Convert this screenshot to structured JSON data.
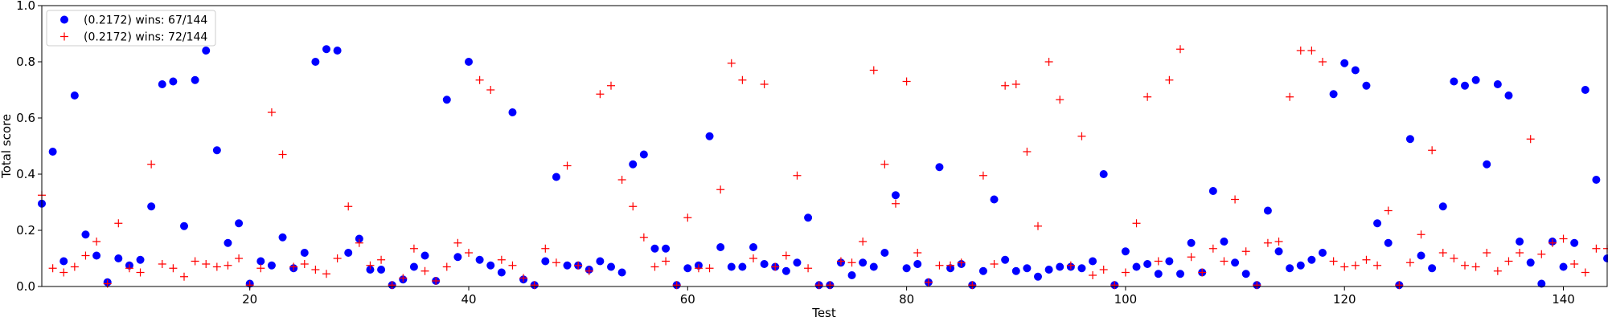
{
  "chart_data": {
    "type": "scatter",
    "xlabel": "Test",
    "ylabel": "Total score",
    "xlim": [
      1,
      144
    ],
    "ylim": [
      0,
      1.0
    ],
    "xticks": [
      20,
      40,
      60,
      80,
      100,
      120,
      140
    ],
    "yticks": [
      0.0,
      0.2,
      0.4,
      0.6,
      0.8,
      1.0
    ],
    "grid": false,
    "legend_position": "top-left",
    "series": [
      {
        "name": "(0.2172) wins: 67/144",
        "marker": "circle",
        "color": "#0000ff",
        "x": [
          1,
          2,
          3,
          4,
          5,
          6,
          7,
          8,
          9,
          10,
          11,
          12,
          13,
          14,
          15,
          16,
          17,
          18,
          19,
          20,
          21,
          22,
          23,
          24,
          25,
          26,
          27,
          28,
          29,
          30,
          31,
          32,
          33,
          34,
          35,
          36,
          37,
          38,
          39,
          40,
          41,
          42,
          43,
          44,
          45,
          46,
          47,
          48,
          49,
          50,
          51,
          52,
          53,
          54,
          55,
          56,
          57,
          58,
          59,
          60,
          61,
          62,
          63,
          64,
          65,
          66,
          67,
          68,
          69,
          70,
          71,
          72,
          73,
          74,
          75,
          76,
          77,
          78,
          79,
          80,
          81,
          82,
          83,
          84,
          85,
          86,
          87,
          88,
          89,
          90,
          91,
          92,
          93,
          94,
          95,
          96,
          97,
          98,
          99,
          100,
          101,
          102,
          103,
          104,
          105,
          106,
          107,
          108,
          109,
          110,
          111,
          112,
          113,
          114,
          115,
          116,
          117,
          118,
          119,
          120,
          121,
          122,
          123,
          124,
          125,
          126,
          127,
          128,
          129,
          130,
          131,
          132,
          133,
          134,
          135,
          136,
          137,
          138,
          139,
          140,
          141,
          142,
          143,
          144
        ],
        "y": [
          0.295,
          0.48,
          0.09,
          0.68,
          0.185,
          0.11,
          0.015,
          0.1,
          0.075,
          0.095,
          0.285,
          0.72,
          0.73,
          0.215,
          0.735,
          0.84,
          0.485,
          0.155,
          0.225,
          0.01,
          0.09,
          0.075,
          0.175,
          0.065,
          0.12,
          0.8,
          0.845,
          0.84,
          0.12,
          0.17,
          0.06,
          0.06,
          0.005,
          0.025,
          0.07,
          0.11,
          0.02,
          0.665,
          0.105,
          0.8,
          0.095,
          0.075,
          0.05,
          0.62,
          0.025,
          0.005,
          0.09,
          0.39,
          0.075,
          0.075,
          0.06,
          0.09,
          0.07,
          0.05,
          0.435,
          0.47,
          0.135,
          0.135,
          0.005,
          0.065,
          0.075,
          0.535,
          0.14,
          0.07,
          0.07,
          0.14,
          0.08,
          0.07,
          0.055,
          0.085,
          0.245,
          0.005,
          0.005,
          0.085,
          0.04,
          0.085,
          0.07,
          0.12,
          0.325,
          0.065,
          0.08,
          0.015,
          0.425,
          0.065,
          0.08,
          0.005,
          0.055,
          0.31,
          0.095,
          0.055,
          0.065,
          0.035,
          0.06,
          0.07,
          0.07,
          0.065,
          0.09,
          0.4,
          0.005,
          0.125,
          0.07,
          0.08,
          0.045,
          0.09,
          0.045,
          0.155,
          0.05,
          0.34,
          0.16,
          0.085,
          0.045,
          0.005,
          0.27,
          0.125,
          0.065,
          0.075,
          0.095,
          0.12,
          0.685,
          0.795,
          0.77,
          0.715,
          0.225,
          0.155,
          0.005,
          0.525,
          0.11,
          0.065,
          0.285,
          0.73,
          0.715,
          0.735,
          0.435,
          0.72,
          0.68,
          0.16,
          0.085,
          0.01,
          0.16,
          0.07,
          0.155,
          0.7,
          0.38,
          0.1
        ]
      },
      {
        "name": "(0.2172) wins: 72/144",
        "marker": "plus",
        "color": "#ff0000",
        "x": [
          1,
          2,
          3,
          4,
          5,
          6,
          7,
          8,
          9,
          10,
          11,
          12,
          13,
          14,
          15,
          16,
          17,
          18,
          19,
          20,
          21,
          22,
          23,
          24,
          25,
          26,
          27,
          28,
          29,
          30,
          31,
          32,
          33,
          34,
          35,
          36,
          37,
          38,
          39,
          40,
          41,
          42,
          43,
          44,
          45,
          46,
          47,
          48,
          49,
          50,
          51,
          52,
          53,
          54,
          55,
          56,
          57,
          58,
          59,
          60,
          61,
          62,
          63,
          64,
          65,
          66,
          67,
          68,
          69,
          70,
          71,
          72,
          73,
          74,
          75,
          76,
          77,
          78,
          79,
          80,
          81,
          82,
          83,
          84,
          85,
          86,
          87,
          88,
          89,
          90,
          91,
          92,
          93,
          94,
          95,
          96,
          97,
          98,
          99,
          100,
          101,
          102,
          103,
          104,
          105,
          106,
          107,
          108,
          109,
          110,
          111,
          112,
          113,
          114,
          115,
          116,
          117,
          118,
          119,
          120,
          121,
          122,
          123,
          124,
          125,
          126,
          127,
          128,
          129,
          130,
          131,
          132,
          133,
          134,
          135,
          136,
          137,
          138,
          139,
          140,
          141,
          142,
          143,
          144
        ],
        "y": [
          0.325,
          0.065,
          0.05,
          0.07,
          0.11,
          0.16,
          0.01,
          0.225,
          0.065,
          0.05,
          0.435,
          0.08,
          0.065,
          0.035,
          0.09,
          0.08,
          0.07,
          0.075,
          0.1,
          0.005,
          0.065,
          0.62,
          0.47,
          0.07,
          0.08,
          0.06,
          0.045,
          0.1,
          0.285,
          0.155,
          0.075,
          0.095,
          0.005,
          0.03,
          0.135,
          0.055,
          0.02,
          0.07,
          0.155,
          0.12,
          0.735,
          0.7,
          0.095,
          0.075,
          0.03,
          0.005,
          0.135,
          0.085,
          0.43,
          0.075,
          0.055,
          0.685,
          0.715,
          0.38,
          0.285,
          0.175,
          0.07,
          0.09,
          0.005,
          0.245,
          0.065,
          0.065,
          0.345,
          0.795,
          0.735,
          0.1,
          0.72,
          0.07,
          0.11,
          0.395,
          0.065,
          0.005,
          0.005,
          0.09,
          0.085,
          0.16,
          0.77,
          0.435,
          0.295,
          0.73,
          0.12,
          0.015,
          0.075,
          0.075,
          0.085,
          0.005,
          0.395,
          0.08,
          0.715,
          0.72,
          0.48,
          0.215,
          0.8,
          0.665,
          0.075,
          0.535,
          0.04,
          0.06,
          0.005,
          0.05,
          0.225,
          0.675,
          0.09,
          0.735,
          0.845,
          0.105,
          0.05,
          0.135,
          0.09,
          0.31,
          0.125,
          0.005,
          0.155,
          0.16,
          0.675,
          0.84,
          0.84,
          0.8,
          0.09,
          0.07,
          0.075,
          0.095,
          0.075,
          0.27,
          0.005,
          0.085,
          0.185,
          0.485,
          0.12,
          0.1,
          0.075,
          0.07,
          0.12,
          0.055,
          0.09,
          0.12,
          0.525,
          0.115,
          0.155,
          0.17,
          0.08,
          0.05,
          0.135,
          0.135
        ]
      }
    ]
  }
}
